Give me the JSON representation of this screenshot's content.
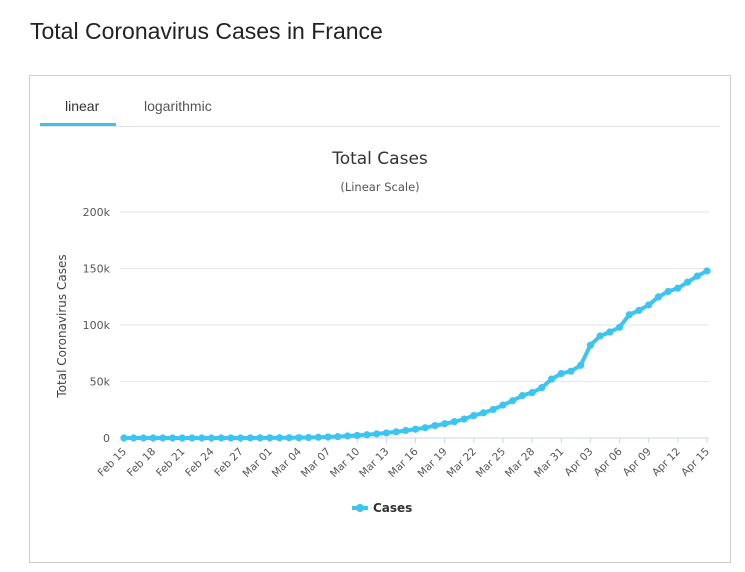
{
  "page": {
    "title": "Total Coronavirus Cases in France"
  },
  "tabs": [
    {
      "label": "linear",
      "active": true
    },
    {
      "label": "logarithmic",
      "active": false
    }
  ],
  "colors": {
    "series": "#3cc5f0",
    "tab_underline": "#3fc1e8"
  },
  "chart_data": {
    "type": "line",
    "title": "Total Cases",
    "subtitle": "(Linear Scale)",
    "ylabel": "Total Coronavirus Cases",
    "xlabel": "",
    "ylim": [
      0,
      200000
    ],
    "y_ticks": [
      0,
      50000,
      100000,
      150000,
      200000
    ],
    "y_tick_labels": [
      "0",
      "50k",
      "100k",
      "150k",
      "200k"
    ],
    "x": [
      "Feb 15",
      "Feb 16",
      "Feb 17",
      "Feb 18",
      "Feb 19",
      "Feb 20",
      "Feb 21",
      "Feb 22",
      "Feb 23",
      "Feb 24",
      "Feb 25",
      "Feb 26",
      "Feb 27",
      "Feb 28",
      "Feb 29",
      "Mar 01",
      "Mar 02",
      "Mar 03",
      "Mar 04",
      "Mar 05",
      "Mar 06",
      "Mar 07",
      "Mar 08",
      "Mar 09",
      "Mar 10",
      "Mar 11",
      "Mar 12",
      "Mar 13",
      "Mar 14",
      "Mar 15",
      "Mar 16",
      "Mar 17",
      "Mar 18",
      "Mar 19",
      "Mar 20",
      "Mar 21",
      "Mar 22",
      "Mar 23",
      "Mar 24",
      "Mar 25",
      "Mar 26",
      "Mar 27",
      "Mar 28",
      "Mar 29",
      "Mar 30",
      "Mar 31",
      "Apr 01",
      "Apr 02",
      "Apr 03",
      "Apr 04",
      "Apr 05",
      "Apr 06",
      "Apr 07",
      "Apr 08",
      "Apr 09",
      "Apr 10",
      "Apr 11",
      "Apr 12",
      "Apr 13",
      "Apr 14",
      "Apr 15"
    ],
    "x_tick_labels": [
      "Feb 15",
      "Feb 18",
      "Feb 21",
      "Feb 24",
      "Feb 27",
      "Mar 01",
      "Mar 04",
      "Mar 07",
      "Mar 10",
      "Mar 13",
      "Mar 16",
      "Mar 19",
      "Mar 22",
      "Mar 25",
      "Mar 28",
      "Mar 31",
      "Apr 03",
      "Apr 06",
      "Apr 09",
      "Apr 12",
      "Apr 15"
    ],
    "series": [
      {
        "name": "Cases",
        "values": [
          12,
          12,
          12,
          12,
          12,
          12,
          12,
          12,
          12,
          12,
          14,
          18,
          38,
          57,
          100,
          130,
          191,
          212,
          285,
          423,
          653,
          949,
          1209,
          1784,
          2281,
          2876,
          3661,
          4499,
          5423,
          6633,
          7730,
          9134,
          10995,
          12612,
          14459,
          16689,
          19856,
          22304,
          25233,
          29155,
          32964,
          37575,
          40174,
          44550,
          52128,
          56989,
          59105,
          64338,
          82165,
          90276,
          93790,
          98010,
          109069,
          112950,
          117749,
          124869,
          129654,
          132591,
          137877,
          143303,
          147863
        ]
      }
    ],
    "legend": {
      "position": "bottom-center",
      "entries": [
        "Cases"
      ]
    },
    "grid": true
  }
}
